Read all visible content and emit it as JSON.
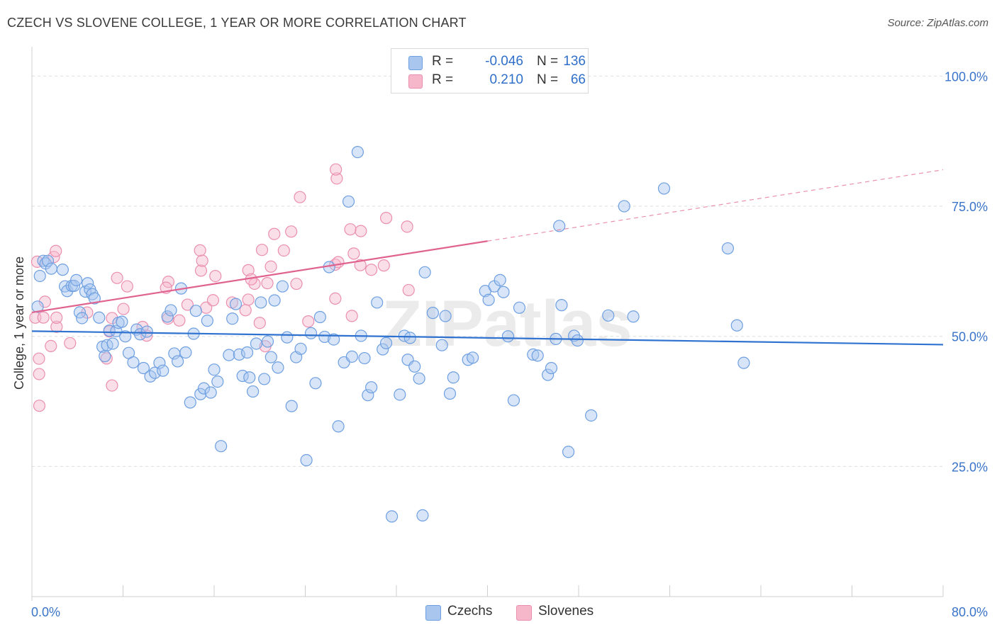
{
  "title": "CZECH VS SLOVENE COLLEGE, 1 YEAR OR MORE CORRELATION CHART",
  "source": "Source: ZipAtlas.com",
  "watermark": "ZIPatlas",
  "colors": {
    "czechs_fill": "#a9c6ef",
    "czechs_stroke": "#6e9fe0",
    "czechs_line": "#2f72cf",
    "slovenes_fill": "#f6b7cb",
    "slovenes_stroke": "#ea8fb0",
    "slovenes_line": "#e0628f",
    "tick_label": "#3a74c8",
    "grid": "#dedede"
  },
  "legend": {
    "rows": [
      {
        "series": "czechs",
        "r_label": "R =",
        "r_value": "-0.046",
        "n_label": "N =",
        "n_value": "136"
      },
      {
        "series": "slovenes",
        "r_label": "R =",
        "r_value": "0.210",
        "n_label": "N =",
        "n_value": "66"
      }
    ]
  },
  "chart_data": {
    "type": "scatter",
    "title": "CZECH VS SLOVENE COLLEGE, 1 YEAR OR MORE CORRELATION CHART",
    "xlabel": "",
    "ylabel": "College, 1 year or more",
    "xlim": [
      0,
      80
    ],
    "ylim": [
      0,
      104
    ],
    "x_tick_labels": [
      {
        "value": 0,
        "label": "0.0%"
      },
      {
        "value": 80,
        "label": "80.0%"
      }
    ],
    "y_tick_labels": [
      {
        "value": 25,
        "label": "25.0%"
      },
      {
        "value": 50,
        "label": "50.0%"
      },
      {
        "value": 75,
        "label": "75.0%"
      },
      {
        "value": 100,
        "label": "100.0%"
      }
    ],
    "grid": true,
    "legend_position": "top-center",
    "series": [
      {
        "name": "Czechs",
        "r": -0.046,
        "n": 136,
        "trend": {
          "x": [
            0,
            80
          ],
          "y": [
            51.0,
            48.4
          ],
          "solid_until": 80
        },
        "points": [
          [
            0.5,
            55.7
          ],
          [
            0.7,
            61.6
          ],
          [
            1.0,
            64.5
          ],
          [
            1.2,
            64.0
          ],
          [
            1.4,
            64.5
          ],
          [
            1.7,
            63.0
          ],
          [
            2.7,
            62.8
          ],
          [
            2.9,
            59.6
          ],
          [
            3.1,
            58.7
          ],
          [
            3.5,
            59.7
          ],
          [
            3.7,
            59.7
          ],
          [
            3.9,
            60.8
          ],
          [
            4.2,
            54.6
          ],
          [
            4.4,
            53.5
          ],
          [
            4.7,
            58.6
          ],
          [
            4.9,
            60.2
          ],
          [
            5.1,
            59.0
          ],
          [
            5.3,
            58.1
          ],
          [
            5.5,
            57.3
          ],
          [
            5.9,
            53.6
          ],
          [
            6.2,
            48.0
          ],
          [
            6.4,
            46.2
          ],
          [
            6.6,
            48.3
          ],
          [
            6.8,
            51.1
          ],
          [
            7.1,
            48.6
          ],
          [
            7.4,
            51.0
          ],
          [
            7.6,
            52.6
          ],
          [
            7.9,
            52.8
          ],
          [
            8.2,
            50.0
          ],
          [
            8.5,
            46.8
          ],
          [
            8.9,
            45.0
          ],
          [
            9.2,
            51.3
          ],
          [
            9.5,
            50.4
          ],
          [
            9.8,
            43.9
          ],
          [
            10.1,
            50.9
          ],
          [
            10.4,
            42.3
          ],
          [
            10.8,
            43.0
          ],
          [
            11.2,
            44.9
          ],
          [
            11.5,
            43.4
          ],
          [
            11.9,
            53.8
          ],
          [
            12.2,
            55.0
          ],
          [
            12.5,
            46.7
          ],
          [
            12.8,
            45.2
          ],
          [
            13.1,
            59.2
          ],
          [
            13.5,
            46.9
          ],
          [
            13.9,
            37.3
          ],
          [
            14.2,
            50.5
          ],
          [
            14.4,
            54.9
          ],
          [
            14.8,
            38.9
          ],
          [
            15.1,
            40.0
          ],
          [
            15.4,
            53.0
          ],
          [
            15.7,
            39.2
          ],
          [
            16.0,
            43.6
          ],
          [
            16.3,
            41.3
          ],
          [
            16.6,
            28.9
          ],
          [
            17.3,
            46.4
          ],
          [
            17.6,
            53.4
          ],
          [
            17.9,
            56.2
          ],
          [
            18.2,
            46.5
          ],
          [
            18.5,
            42.4
          ],
          [
            18.9,
            46.9
          ],
          [
            19.1,
            42.1
          ],
          [
            19.4,
            39.4
          ],
          [
            19.7,
            48.6
          ],
          [
            20.1,
            56.5
          ],
          [
            20.4,
            41.8
          ],
          [
            20.7,
            49.0
          ],
          [
            21.0,
            46.0
          ],
          [
            21.3,
            56.9
          ],
          [
            21.6,
            44.0
          ],
          [
            22.0,
            59.6
          ],
          [
            22.4,
            49.8
          ],
          [
            22.8,
            36.6
          ],
          [
            23.2,
            46.0
          ],
          [
            23.6,
            47.6
          ],
          [
            24.1,
            26.2
          ],
          [
            24.5,
            50.6
          ],
          [
            24.9,
            41.0
          ],
          [
            25.3,
            53.7
          ],
          [
            25.7,
            49.9
          ],
          [
            26.1,
            63.3
          ],
          [
            26.5,
            49.4
          ],
          [
            26.9,
            32.7
          ],
          [
            27.4,
            45.0
          ],
          [
            27.8,
            75.9
          ],
          [
            28.1,
            46.1
          ],
          [
            28.6,
            85.4
          ],
          [
            28.9,
            50.1
          ],
          [
            29.2,
            45.8
          ],
          [
            29.5,
            38.7
          ],
          [
            29.8,
            40.2
          ],
          [
            30.3,
            56.5
          ],
          [
            30.8,
            47.5
          ],
          [
            31.1,
            48.7
          ],
          [
            31.6,
            15.4
          ],
          [
            32.3,
            38.8
          ],
          [
            32.7,
            50.1
          ],
          [
            33.0,
            45.5
          ],
          [
            33.2,
            49.7
          ],
          [
            33.6,
            44.2
          ],
          [
            34.0,
            41.9
          ],
          [
            34.3,
            15.6
          ],
          [
            34.5,
            62.3
          ],
          [
            35.2,
            54.5
          ],
          [
            36.0,
            48.3
          ],
          [
            36.3,
            53.9
          ],
          [
            36.7,
            39.0
          ],
          [
            37.0,
            42.1
          ],
          [
            38.3,
            45.5
          ],
          [
            38.7,
            45.9
          ],
          [
            39.8,
            58.7
          ],
          [
            40.1,
            57.0
          ],
          [
            40.6,
            59.6
          ],
          [
            41.1,
            60.8
          ],
          [
            41.4,
            58.5
          ],
          [
            41.8,
            50.0
          ],
          [
            42.3,
            37.7
          ],
          [
            42.8,
            55.5
          ],
          [
            44.0,
            46.5
          ],
          [
            44.4,
            46.3
          ],
          [
            45.3,
            42.6
          ],
          [
            45.6,
            43.9
          ],
          [
            46.0,
            49.5
          ],
          [
            46.3,
            71.2
          ],
          [
            46.5,
            56.0
          ],
          [
            47.1,
            27.8
          ],
          [
            47.6,
            50.1
          ],
          [
            47.9,
            49.2
          ],
          [
            49.1,
            34.8
          ],
          [
            50.6,
            54.0
          ],
          [
            52.0,
            75.0
          ],
          [
            52.8,
            53.8
          ],
          [
            55.5,
            78.4
          ],
          [
            61.1,
            66.9
          ],
          [
            61.9,
            52.1
          ],
          [
            62.5,
            44.9
          ]
        ]
      },
      {
        "name": "Slovenes",
        "r": 0.21,
        "n": 66,
        "trend": {
          "x": [
            0,
            80
          ],
          "y": [
            54.6,
            82.0
          ],
          "solid_until": 40
        }
      }
    ]
  }
}
